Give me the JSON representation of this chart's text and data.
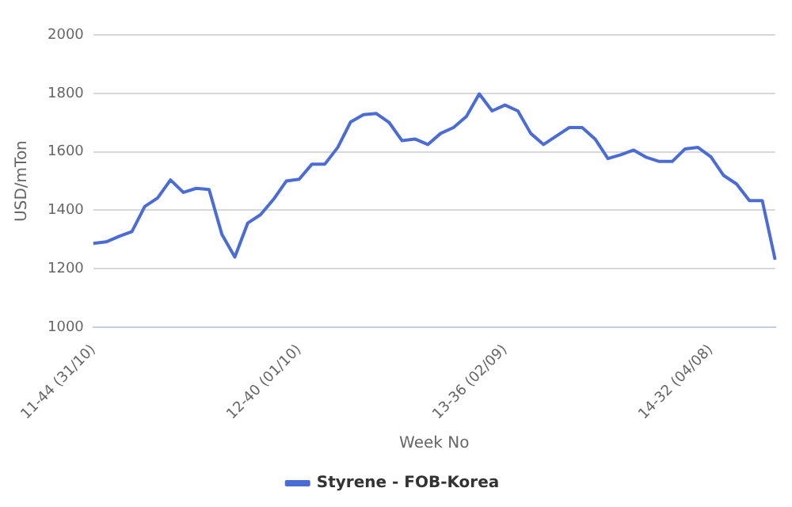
{
  "chart_data": {
    "type": "line",
    "xlabel": "Week No",
    "ylabel": "USD/mTon",
    "categories": [
      "11-44 (31/10)",
      null,
      null,
      null,
      null,
      null,
      null,
      null,
      null,
      null,
      null,
      null,
      null,
      null,
      null,
      null,
      "12-40 (01/10)",
      null,
      null,
      null,
      null,
      null,
      null,
      null,
      null,
      null,
      null,
      null,
      null,
      null,
      null,
      null,
      "13-36 (02/09)",
      null,
      null,
      null,
      null,
      null,
      null,
      null,
      null,
      null,
      null,
      null,
      null,
      null,
      null,
      null,
      "14-32 (04/08)",
      null,
      null,
      null,
      null,
      null
    ],
    "series": [
      {
        "name": "Styrene - FOB-Korea",
        "color": "#4a6cd4",
        "values": [
          1287,
          1292,
          1311,
          1327,
          1413,
          1442,
          1504,
          1461,
          1475,
          1471,
          1317,
          1240,
          1356,
          1385,
          1437,
          1500,
          1506,
          1558,
          1558,
          1615,
          1702,
          1727,
          1731,
          1700,
          1638,
          1644,
          1625,
          1663,
          1683,
          1721,
          1798,
          1740,
          1760,
          1740,
          1663,
          1625,
          1654,
          1683,
          1683,
          1644,
          1577,
          1590,
          1606,
          1581,
          1567,
          1567,
          1610,
          1615,
          1583,
          1519,
          1490,
          1433,
          1433,
          1231
        ]
      }
    ],
    "ylim": [
      1000,
      2000
    ],
    "yticks": [
      1000,
      1200,
      1400,
      1600,
      1800,
      2000
    ],
    "grid": "y",
    "legend": "bottom",
    "marker": "none",
    "line_style": "solid"
  }
}
